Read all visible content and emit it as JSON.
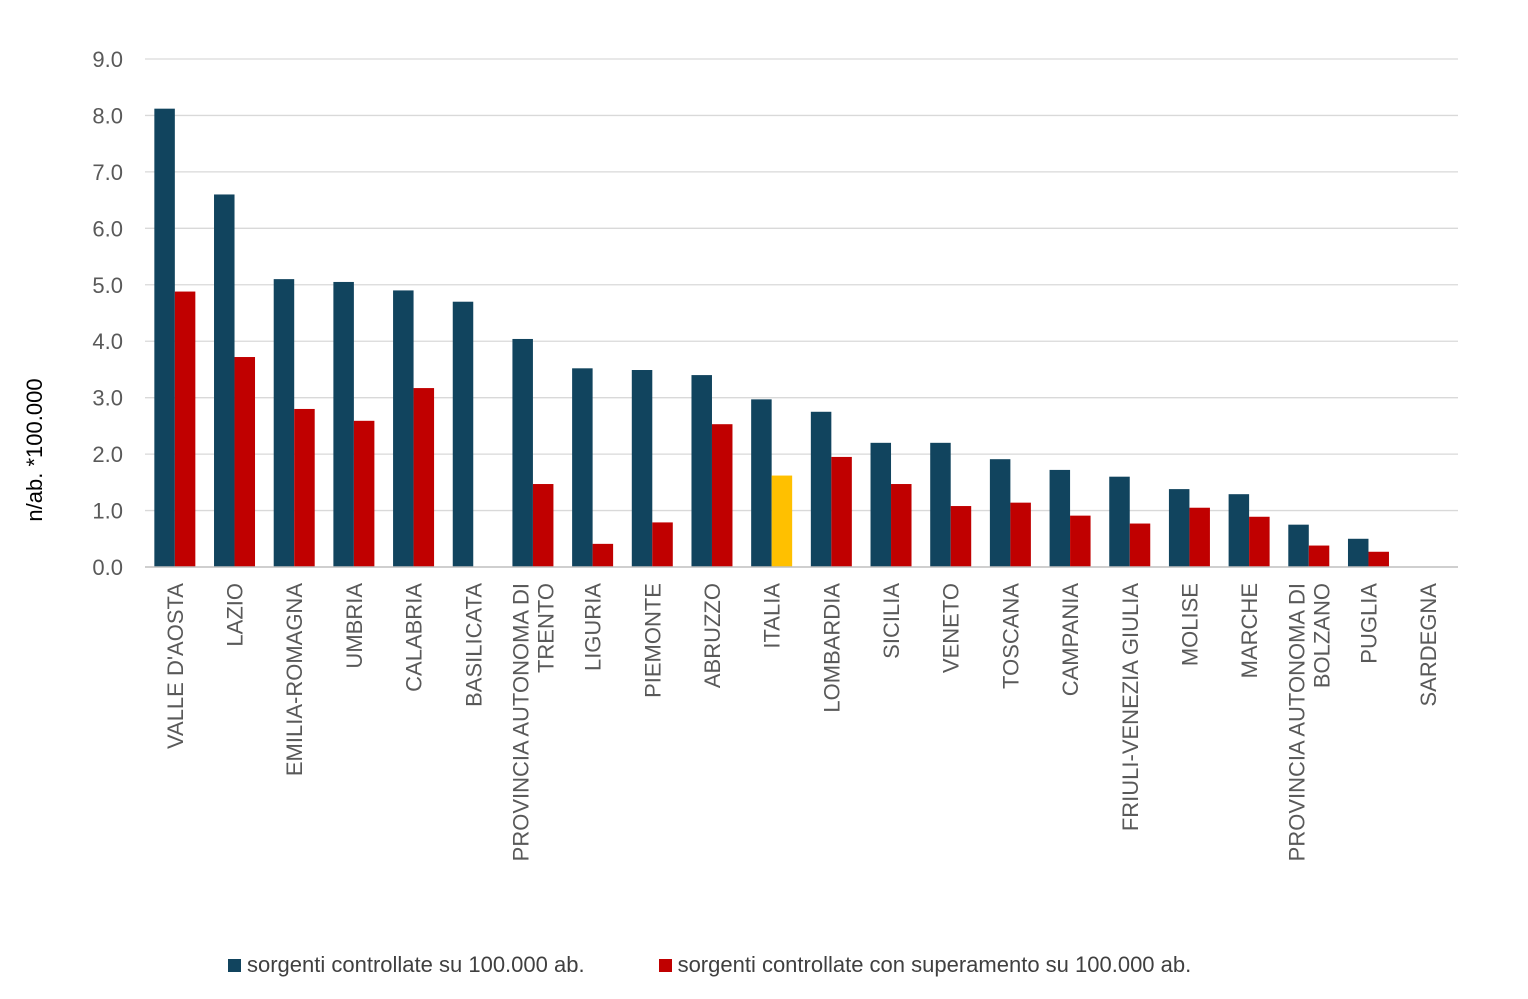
{
  "chart_data": {
    "type": "bar",
    "title": "",
    "xlabel": "",
    "ylabel": "n/ab. *100.000",
    "ylim": [
      0,
      9
    ],
    "yticks": [
      "0.0",
      "1.0",
      "2.0",
      "3.0",
      "4.0",
      "5.0",
      "6.0",
      "7.0",
      "8.0",
      "9.0"
    ],
    "grid": true,
    "legend_position": "bottom",
    "highlight_category": "ITALIA",
    "colors": {
      "series1": "#11445E",
      "series2": "#C00000",
      "highlight": "#FFC000",
      "grid": "#D9D9D9",
      "axis": "#BFBFBF"
    },
    "categories": [
      [
        "VALLE D'AOSTA"
      ],
      [
        "LAZIO"
      ],
      [
        "EMILIA-ROMAGNA"
      ],
      [
        "UMBRIA"
      ],
      [
        "CALABRIA"
      ],
      [
        "BASILICATA"
      ],
      [
        "PROVINCIA AUTONOMA DI",
        "TRENTO"
      ],
      [
        "LIGURIA"
      ],
      [
        "PIEMONTE"
      ],
      [
        "ABRUZZO"
      ],
      [
        "ITALIA"
      ],
      [
        "LOMBARDIA"
      ],
      [
        "SICILIA"
      ],
      [
        "VENETO"
      ],
      [
        "TOSCANA"
      ],
      [
        "CAMPANIA"
      ],
      [
        "FRIULI-VENEZIA GIULIA"
      ],
      [
        "MOLISE"
      ],
      [
        "MARCHE"
      ],
      [
        "PROVINCIA AUTONOMA DI",
        "BOLZANO"
      ],
      [
        "PUGLIA"
      ],
      [
        "SARDEGNA"
      ]
    ],
    "series": [
      {
        "name": "sorgenti controllate su 100.000 ab.",
        "values": [
          8.12,
          6.6,
          5.1,
          5.05,
          4.9,
          4.7,
          4.04,
          3.52,
          3.49,
          3.4,
          2.97,
          2.75,
          2.2,
          2.2,
          1.91,
          1.72,
          1.6,
          1.38,
          1.29,
          0.75,
          0.5,
          0.0
        ]
      },
      {
        "name": "sorgenti controllate con superamento su 100.000 ab.",
        "values": [
          4.88,
          3.72,
          2.8,
          2.59,
          3.17,
          0.0,
          1.47,
          0.41,
          0.79,
          2.53,
          1.62,
          1.95,
          1.47,
          1.08,
          1.14,
          0.91,
          0.77,
          1.05,
          0.89,
          0.38,
          0.27,
          0.0
        ]
      }
    ]
  }
}
